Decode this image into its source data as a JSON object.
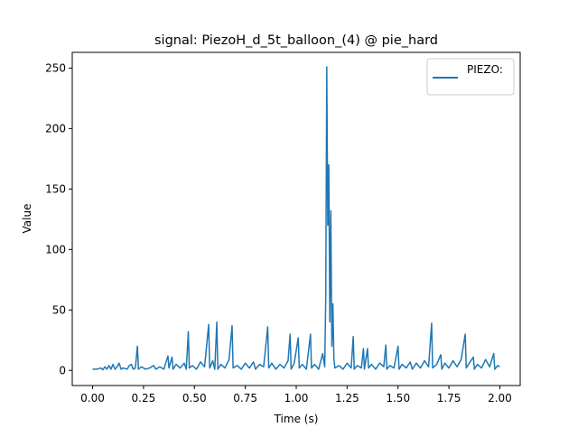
{
  "chart_data": {
    "type": "line",
    "title": "signal: PiezoH_d_5t_balloon_(4) @ pie_hard",
    "xlabel": "Time (s)",
    "ylabel": "Value",
    "xlim": [
      -0.1,
      2.1
    ],
    "ylim": [
      -12.5,
      263
    ],
    "xticks": [
      0.0,
      0.25,
      0.5,
      0.75,
      1.0,
      1.25,
      1.5,
      1.75,
      2.0
    ],
    "xtick_labels": [
      "0.00",
      "0.25",
      "0.50",
      "0.75",
      "1.00",
      "1.25",
      "1.50",
      "1.75",
      "2.00"
    ],
    "yticks": [
      0,
      50,
      100,
      150,
      200,
      250
    ],
    "ytick_labels": [
      "0",
      "50",
      "100",
      "150",
      "200",
      "250"
    ],
    "grid": false,
    "legend_position": "top-right",
    "series_color": "#1f77b4",
    "series": [
      {
        "name": "PIEZO:",
        "points": [
          [
            0.0,
            1
          ],
          [
            0.02,
            1
          ],
          [
            0.04,
            2
          ],
          [
            0.05,
            0.5
          ],
          [
            0.06,
            3
          ],
          [
            0.07,
            1
          ],
          [
            0.08,
            4
          ],
          [
            0.09,
            1
          ],
          [
            0.1,
            5
          ],
          [
            0.11,
            1
          ],
          [
            0.12,
            3
          ],
          [
            0.13,
            6
          ],
          [
            0.14,
            1
          ],
          [
            0.15,
            2
          ],
          [
            0.17,
            1
          ],
          [
            0.18,
            4
          ],
          [
            0.19,
            5
          ],
          [
            0.2,
            1
          ],
          [
            0.21,
            2
          ],
          [
            0.22,
            20
          ],
          [
            0.225,
            1
          ],
          [
            0.24,
            3
          ],
          [
            0.26,
            1
          ],
          [
            0.28,
            2
          ],
          [
            0.3,
            4
          ],
          [
            0.31,
            1
          ],
          [
            0.33,
            3
          ],
          [
            0.35,
            1
          ],
          [
            0.37,
            12
          ],
          [
            0.375,
            2
          ],
          [
            0.39,
            11
          ],
          [
            0.395,
            1
          ],
          [
            0.41,
            5
          ],
          [
            0.43,
            2
          ],
          [
            0.45,
            6
          ],
          [
            0.46,
            1
          ],
          [
            0.47,
            32
          ],
          [
            0.475,
            2
          ],
          [
            0.49,
            4
          ],
          [
            0.51,
            1
          ],
          [
            0.53,
            7
          ],
          [
            0.55,
            3
          ],
          [
            0.57,
            38
          ],
          [
            0.575,
            2
          ],
          [
            0.59,
            8
          ],
          [
            0.6,
            1
          ],
          [
            0.61,
            40
          ],
          [
            0.615,
            1
          ],
          [
            0.63,
            5
          ],
          [
            0.65,
            2
          ],
          [
            0.67,
            9
          ],
          [
            0.685,
            37
          ],
          [
            0.69,
            2
          ],
          [
            0.71,
            4
          ],
          [
            0.73,
            1
          ],
          [
            0.75,
            6
          ],
          [
            0.77,
            2
          ],
          [
            0.79,
            7
          ],
          [
            0.8,
            1
          ],
          [
            0.82,
            5
          ],
          [
            0.84,
            3
          ],
          [
            0.86,
            36
          ],
          [
            0.865,
            2
          ],
          [
            0.88,
            6
          ],
          [
            0.9,
            1
          ],
          [
            0.92,
            5
          ],
          [
            0.94,
            2
          ],
          [
            0.96,
            8
          ],
          [
            0.97,
            30
          ],
          [
            0.975,
            1
          ],
          [
            0.99,
            6
          ],
          [
            1.01,
            27
          ],
          [
            1.015,
            2
          ],
          [
            1.03,
            5
          ],
          [
            1.05,
            1
          ],
          [
            1.07,
            30
          ],
          [
            1.075,
            2
          ],
          [
            1.09,
            5
          ],
          [
            1.11,
            1
          ],
          [
            1.13,
            14
          ],
          [
            1.14,
            3
          ],
          [
            1.145,
            60
          ],
          [
            1.15,
            251
          ],
          [
            1.155,
            120
          ],
          [
            1.16,
            170
          ],
          [
            1.165,
            40
          ],
          [
            1.17,
            132
          ],
          [
            1.175,
            20
          ],
          [
            1.18,
            55
          ],
          [
            1.185,
            10
          ],
          [
            1.19,
            2
          ],
          [
            1.21,
            4
          ],
          [
            1.23,
            1
          ],
          [
            1.25,
            6
          ],
          [
            1.27,
            2
          ],
          [
            1.28,
            28
          ],
          [
            1.285,
            1
          ],
          [
            1.3,
            4
          ],
          [
            1.32,
            2
          ],
          [
            1.33,
            18
          ],
          [
            1.335,
            1
          ],
          [
            1.35,
            18
          ],
          [
            1.355,
            2
          ],
          [
            1.37,
            5
          ],
          [
            1.39,
            1
          ],
          [
            1.41,
            6
          ],
          [
            1.43,
            3
          ],
          [
            1.44,
            21
          ],
          [
            1.445,
            1
          ],
          [
            1.46,
            4
          ],
          [
            1.48,
            2
          ],
          [
            1.5,
            20
          ],
          [
            1.505,
            1
          ],
          [
            1.52,
            5
          ],
          [
            1.54,
            2
          ],
          [
            1.56,
            7
          ],
          [
            1.57,
            1
          ],
          [
            1.59,
            6
          ],
          [
            1.61,
            2
          ],
          [
            1.63,
            8
          ],
          [
            1.65,
            3
          ],
          [
            1.665,
            39
          ],
          [
            1.67,
            2
          ],
          [
            1.69,
            5
          ],
          [
            1.71,
            13
          ],
          [
            1.715,
            1
          ],
          [
            1.73,
            6
          ],
          [
            1.75,
            2
          ],
          [
            1.77,
            8
          ],
          [
            1.79,
            3
          ],
          [
            1.81,
            9
          ],
          [
            1.83,
            30
          ],
          [
            1.835,
            2
          ],
          [
            1.85,
            6
          ],
          [
            1.87,
            11
          ],
          [
            1.875,
            1
          ],
          [
            1.89,
            5
          ],
          [
            1.91,
            2
          ],
          [
            1.93,
            9
          ],
          [
            1.95,
            3
          ],
          [
            1.97,
            14
          ],
          [
            1.975,
            1
          ],
          [
            1.99,
            4
          ],
          [
            2.0,
            3
          ]
        ]
      }
    ]
  }
}
